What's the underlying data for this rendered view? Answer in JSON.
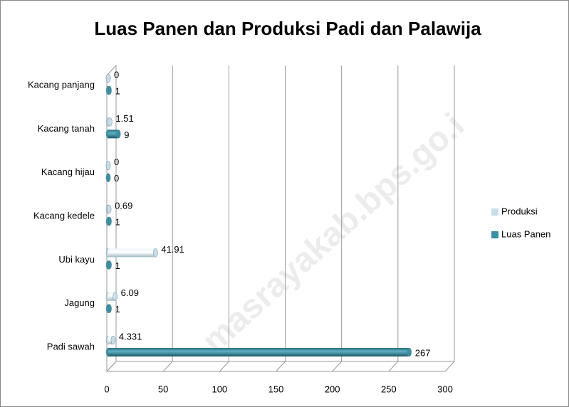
{
  "chart_data": {
    "type": "bar",
    "orientation": "horizontal",
    "title": "Luas Panen dan Produksi Padi dan Palawija",
    "categories": [
      "Padi sawah",
      "Jagung",
      "Ubi kayu",
      "Kacang kedele",
      "Kacang hijau",
      "Kacang tanah",
      "Kacang panjang"
    ],
    "series": [
      {
        "name": "Produksi",
        "color": "#c9dde8",
        "values": [
          4.331,
          6.09,
          41.91,
          0.69,
          0,
          1.51,
          0
        ]
      },
      {
        "name": "Luas Panen",
        "color": "#3a8fa3",
        "values": [
          267,
          1,
          1,
          1,
          0,
          9,
          1
        ]
      }
    ],
    "xlim": [
      0,
      300
    ],
    "xticks": [
      0,
      50,
      100,
      150,
      200,
      250,
      300
    ],
    "grid": true,
    "legend": "right",
    "watermark": "masrayakab.bps.go.i"
  }
}
